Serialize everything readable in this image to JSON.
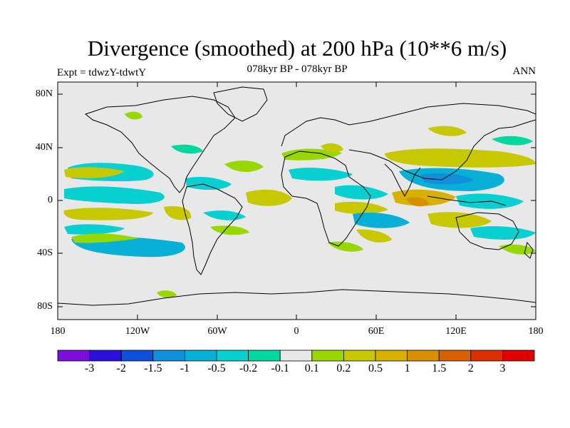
{
  "title": "Divergence (smoothed) at 200 hPa (10**6 m/s)",
  "subtitle": "078kyr BP - 078kyr BP",
  "left_label": "Expt = tdwzY-tdwtY",
  "right_label": "ANN",
  "background_color": "#e8e8e8",
  "lat_ticks": [
    "80N",
    "40N",
    "0",
    "40S",
    "80S"
  ],
  "lon_ticks": [
    "180",
    "120W",
    "60W",
    "0",
    "60E",
    "120E",
    "180"
  ],
  "colorbar": {
    "colors": [
      "#7a10d8",
      "#2a10d8",
      "#1050d8",
      "#1090d8",
      "#08b0d8",
      "#08d0d0",
      "#00d8a0",
      "#e8e8e8",
      "#98d800",
      "#c8c800",
      "#d8b000",
      "#d89000",
      "#d86000",
      "#d83000",
      "#e00000"
    ],
    "labels": [
      "-3",
      "-2",
      "-1.5",
      "-1",
      "-0.5",
      "-0.2",
      "-0.1",
      "0.1",
      "0.2",
      "0.5",
      "1",
      "1.5",
      "2",
      "3"
    ]
  },
  "map_colors": {
    "pos_weak": "#98d800",
    "pos_mid": "#c8c800",
    "pos_strong": "#d8b000",
    "pos_stronger": "#d89000",
    "neg_weak": "#00d8a0",
    "neg_mid": "#08d0d0",
    "neg_strong": "#08b0d8",
    "neg_stronger": "#1090d8"
  }
}
